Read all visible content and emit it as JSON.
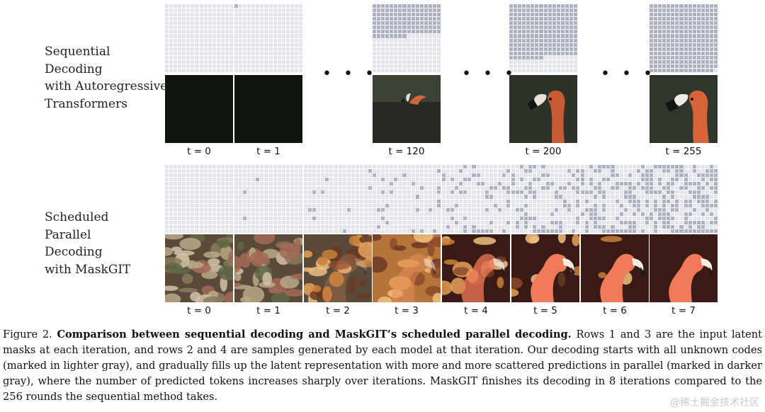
{
  "top_label": [
    "Sequential",
    "Decoding",
    "with Autoregressive",
    "Transformers"
  ],
  "bottom_label": [
    "Scheduled",
    "Parallel",
    "Decoding",
    "with MaskGIT"
  ],
  "ellipsis": "• • •",
  "sequential": [
    {
      "t": "t = 0",
      "mask_progress": 0,
      "image": "dark"
    },
    {
      "t": "t = 1",
      "mask_progress": 1,
      "image": "dark"
    },
    {
      "t": "t = 120",
      "mask_progress": 120,
      "image": "flamingo"
    },
    {
      "t": "t = 200",
      "mask_progress": 200,
      "image": "flamingo"
    },
    {
      "t": "t = 255",
      "mask_progress": 255,
      "image": "flamingo"
    }
  ],
  "parallel": [
    {
      "t": "t = 0",
      "mask_fraction": 0.0,
      "image_stage": 0
    },
    {
      "t": "t = 1",
      "mask_fraction": 0.01,
      "image_stage": 1
    },
    {
      "t": "t = 2",
      "mask_fraction": 0.04,
      "image_stage": 2
    },
    {
      "t": "t = 3",
      "mask_fraction": 0.1,
      "image_stage": 3
    },
    {
      "t": "t = 4",
      "mask_fraction": 0.2,
      "image_stage": 4
    },
    {
      "t": "t = 5",
      "mask_fraction": 0.3,
      "image_stage": 5
    },
    {
      "t": "t = 6",
      "mask_fraction": 0.42,
      "image_stage": 6
    },
    {
      "t": "t = 7",
      "mask_fraction": 0.55,
      "image_stage": 7
    }
  ],
  "caption": {
    "prefix": "Figure 2.",
    "bold": "Comparison between sequential decoding and MaskGIT’s scheduled parallel decoding.",
    "body": "Rows 1 and 3 are the input latent masks at each iteration, and rows 2 and 4 are samples generated by each model at that iteration. Our decoding starts with all unknown codes (marked in lighter gray), and gradually fills up the latent representation with more and more scattered predictions in parallel (marked in darker gray), where the number of predicted tokens increases sharply over iterations. MaskGIT finishes its decoding in 8 iterations compared to the 256 rounds the sequential method takes."
  },
  "watermark": "@稀土掘金技术社区",
  "colors": {
    "mask_unknown": "#e4e5ec",
    "mask_predicted": "#aeb0c4",
    "dark_image": "#0f140d"
  }
}
